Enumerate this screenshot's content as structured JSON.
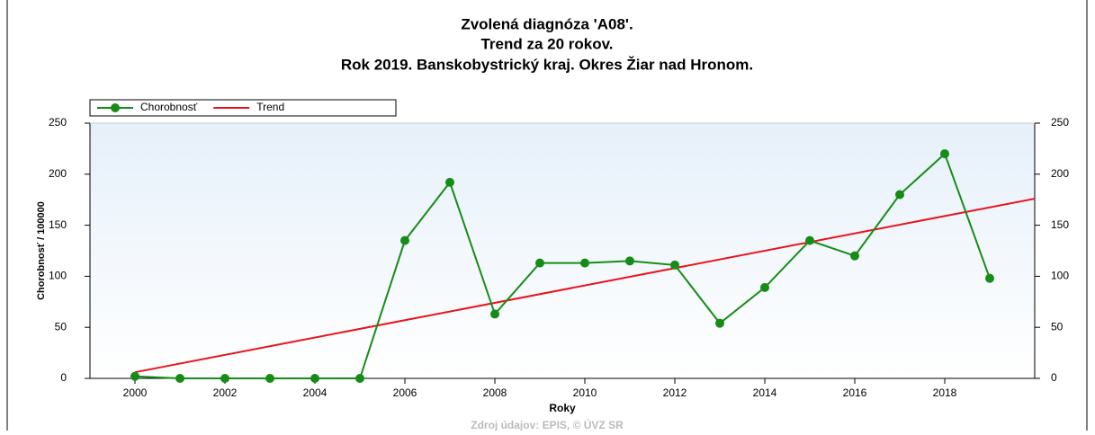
{
  "chart_data": {
    "type": "line",
    "title": [
      "Zvolená diagnóza 'A08'.",
      "Trend za 20 rokov.",
      "Rok 2019. Banskobystrický kraj. Okres Žiar nad Hronom."
    ],
    "x_label": "Roky",
    "y_label": "Chorobnosť / 100000",
    "source": "Zdroj údajov: EPIS, © ÚVZ SR",
    "series": [
      {
        "name": "Chorobnosť",
        "color": "#168c16",
        "marker": "circle",
        "x": [
          2000,
          2001,
          2002,
          2003,
          2004,
          2005,
          2006,
          2007,
          2008,
          2009,
          2010,
          2011,
          2012,
          2013,
          2014,
          2015,
          2016,
          2017,
          2018,
          2019
        ],
        "values": [
          2,
          0,
          0,
          0,
          0,
          0,
          135,
          192,
          63,
          113,
          113,
          115,
          111,
          54,
          89,
          135,
          120,
          180,
          220,
          98
        ]
      },
      {
        "name": "Trend",
        "color": "#e8141c",
        "marker": "none",
        "x": [
          2000,
          2020
        ],
        "values": [
          6,
          176
        ]
      }
    ],
    "xlim": [
      1999,
      2020
    ],
    "xticks": [
      2000,
      2002,
      2004,
      2006,
      2008,
      2010,
      2012,
      2014,
      2016,
      2018
    ],
    "ylim": [
      0,
      250
    ],
    "yticks": [
      0,
      50,
      100,
      150,
      200,
      250
    ],
    "y2lim": [
      0,
      250
    ],
    "y2ticks": [
      0,
      50,
      100,
      150,
      200,
      250
    ],
    "legend": "top-left"
  }
}
